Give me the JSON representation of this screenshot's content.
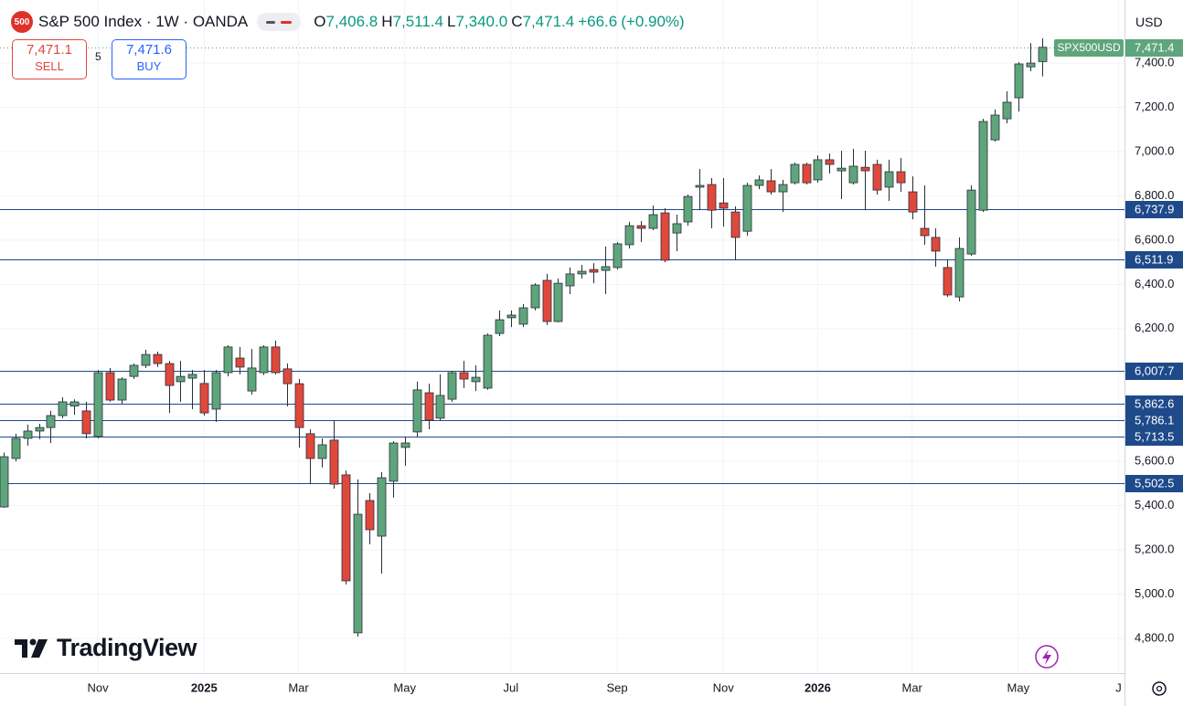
{
  "chart_data": {
    "type": "candlestick",
    "logo_text": "500",
    "title": "S&P 500 Index · 1W · OANDA",
    "ohlc_keys": [
      "O",
      "H",
      "L",
      "C"
    ],
    "last_labels": [
      "7,406.8",
      "7,511.4",
      "7,340.0",
      "7,471.4"
    ],
    "change": {
      "value": 66.6,
      "label": "+66.6"
    },
    "change_pct": {
      "value": 0.9,
      "label": "(+0.90%)"
    },
    "sell": {
      "value": 7471.1,
      "label": "7,471.1",
      "text": "SELL"
    },
    "spread": "5",
    "buy": {
      "value": 7471.6,
      "label": "7,471.6",
      "text": "BUY"
    },
    "currency": "USD",
    "brand": "TradingView",
    "symbol": "SPX500USD",
    "last_price": {
      "value": 7471.4,
      "label": "7,471.4"
    },
    "up_color": "#5ea57b",
    "down_color": "#e0483c",
    "level_color": "#1e4a8a",
    "grid": true,
    "open": [
      5394,
      5613,
      5704,
      5737,
      5753,
      5807,
      5850,
      5828,
      5712,
      6001,
      5877,
      5984,
      6034,
      6083,
      6042,
      5960,
      5976,
      5952,
      5836,
      6001,
      6067,
      5918,
      6001,
      6117,
      6018,
      5951,
      5725,
      5613,
      5696,
      5539,
      4825,
      5423,
      5262,
      5510,
      5663,
      5733,
      5910,
      5795,
      5881,
      6001,
      5960,
      5931,
      6178,
      6249,
      6220,
      6294,
      6418,
      6232,
      6393,
      6447,
      6467,
      6463,
      6476,
      6579,
      6665,
      6653,
      6723,
      6632,
      6682,
      6839,
      6851,
      6768,
      6727,
      6640,
      6847,
      6868,
      6818,
      6859,
      6942,
      6872,
      6963,
      6913,
      6859,
      6929,
      6942,
      6839,
      6909,
      6818,
      6653,
      6612,
      6476,
      6343,
      6537,
      6735,
      7053,
      7148,
      7243,
      7383,
      7406.8
    ],
    "high": [
      5640,
      5725,
      5766,
      5770,
      5828,
      5890,
      5880,
      5869,
      6013,
      6022,
      5980,
      6042,
      6104,
      6096,
      6054,
      6054,
      6013,
      6013,
      6013,
      6125,
      6117,
      6108,
      6125,
      6146,
      6042,
      5972,
      5745,
      5704,
      5786,
      5559,
      5518,
      5456,
      5551,
      5691,
      5712,
      5960,
      5951,
      5993,
      6009,
      6054,
      6034,
      6178,
      6282,
      6282,
      6311,
      6405,
      6447,
      6426,
      6476,
      6488,
      6496,
      6571,
      6591,
      6682,
      6686,
      6756,
      6744,
      6715,
      6806,
      6921,
      6880,
      6880,
      6752,
      6859,
      6892,
      6921,
      6872,
      6950,
      6950,
      6983,
      6991,
      7004,
      7012,
      7004,
      6963,
      6963,
      6971,
      6888,
      6847,
      6653,
      6509,
      6612,
      6847,
      7148,
      7190,
      7272,
      7404,
      7490,
      7511.4
    ],
    "low": [
      5390,
      5600,
      5671,
      5700,
      5683,
      5795,
      5810,
      5704,
      5704,
      5869,
      5860,
      5972,
      6022,
      6026,
      5819,
      5869,
      5836,
      5807,
      5778,
      5984,
      5993,
      5902,
      5990,
      5993,
      5848,
      5662,
      5497,
      5572,
      5477,
      5044,
      4808,
      5225,
      5093,
      5436,
      5580,
      5712,
      5745,
      5786,
      5869,
      5931,
      5918,
      5923,
      6166,
      6207,
      6207,
      6282,
      6216,
      6228,
      6356,
      6426,
      6405,
      6356,
      6467,
      6562,
      6591,
      6645,
      6500,
      6550,
      6665,
      6735,
      6653,
      6661,
      6509,
      6620,
      6830,
      6806,
      6727,
      6851,
      6851,
      6859,
      6901,
      6785,
      6851,
      6735,
      6806,
      6777,
      6818,
      6694,
      6579,
      6480,
      6343,
      6323,
      6529,
      6727,
      7045,
      7128,
      7181,
      7363,
      7340.0
    ],
    "close": [
      5621,
      5704,
      5737,
      5753,
      5807,
      5869,
      5869,
      5725,
      6001,
      5877,
      5972,
      6034,
      6083,
      6042,
      5943,
      5984,
      5993,
      5819,
      6001,
      6117,
      6026,
      6022,
      6117,
      6001,
      5951,
      5753,
      5613,
      5675,
      5497,
      5060,
      5361,
      5291,
      5526,
      5683,
      5683,
      5923,
      5786,
      5898,
      6001,
      5972,
      5980,
      6170,
      6240,
      6261,
      6294,
      6397,
      6232,
      6405,
      6447,
      6459,
      6455,
      6480,
      6583,
      6665,
      6653,
      6715,
      6509,
      6674,
      6797,
      6847,
      6735,
      6744,
      6612,
      6847,
      6872,
      6818,
      6851,
      6942,
      6859,
      6963,
      6942,
      6925,
      6934,
      6913,
      6826,
      6909,
      6859,
      6727,
      6620,
      6550,
      6352,
      6562,
      6826,
      7136,
      7165,
      7223,
      7396,
      7400,
      7471.4
    ],
    "xlim": [
      -0.3,
      95
    ],
    "xticks": [
      {
        "value": 8,
        "label": "Nov"
      },
      {
        "value": 17,
        "label": "2025"
      },
      {
        "value": 25,
        "label": "Mar"
      },
      {
        "value": 34,
        "label": "May"
      },
      {
        "value": 43,
        "label": "Jul"
      },
      {
        "value": 52,
        "label": "Sep"
      },
      {
        "value": 61,
        "label": "Nov"
      },
      {
        "value": 69,
        "label": "2026"
      },
      {
        "value": 77,
        "label": "Mar"
      },
      {
        "value": 86,
        "label": "May"
      },
      {
        "value": 94.5,
        "label": "J"
      }
    ],
    "ylim": [
      4643,
      7685
    ],
    "yticks": [
      {
        "value": 4800,
        "label": "4,800.0"
      },
      {
        "value": 5000,
        "label": "5,000.0"
      },
      {
        "value": 5200,
        "label": "5,200.0"
      },
      {
        "value": 5400,
        "label": "5,400.0"
      },
      {
        "value": 5600,
        "label": "5,600.0"
      },
      {
        "value": 5800,
        "label": "5,800.0"
      },
      {
        "value": 6000,
        "label": "6,000.0"
      },
      {
        "value": 6200,
        "label": "6,200.0"
      },
      {
        "value": 6400,
        "label": "6,400.0"
      },
      {
        "value": 6600,
        "label": "6,600.0"
      },
      {
        "value": 6800,
        "label": "6,800.0"
      },
      {
        "value": 7000,
        "label": "7,000.0"
      },
      {
        "value": 7200,
        "label": "7,200.0"
      },
      {
        "value": 7400,
        "label": "7,400.0"
      }
    ],
    "levels": [
      {
        "value": 6737.9,
        "label": "6,737.9"
      },
      {
        "value": 6511.9,
        "label": "6,511.9"
      },
      {
        "value": 6007.7,
        "label": "6,007.7"
      },
      {
        "value": 5862.6,
        "label": "5,862.6"
      },
      {
        "value": 5786.1,
        "label": "5,786.1"
      },
      {
        "value": 5713.5,
        "label": "5,713.5"
      },
      {
        "value": 5502.5,
        "label": "5,502.5"
      }
    ]
  }
}
